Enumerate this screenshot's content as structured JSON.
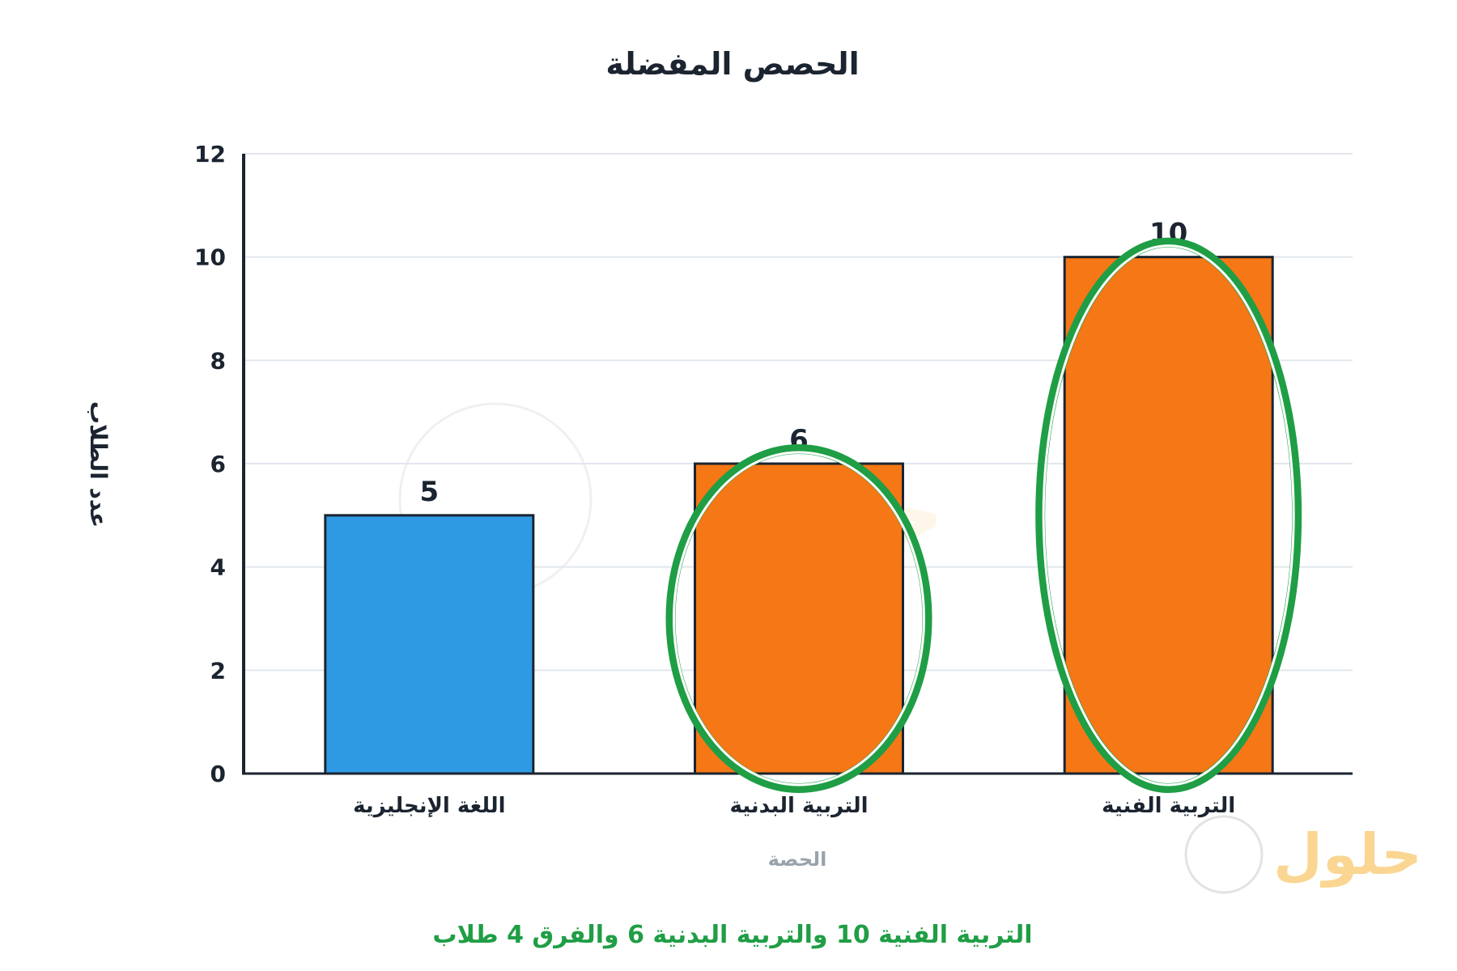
{
  "chart_data": {
    "type": "bar",
    "title": "الحصص المفضلة",
    "xlabel": "الحصة",
    "ylabel": "عدد الطلاب",
    "categories": [
      "اللغة الإنجليزية",
      "التربية البدنية",
      "التربية الفنية"
    ],
    "values": [
      5,
      6,
      10
    ],
    "bar_colors": [
      "#2f9ae4",
      "#f67716",
      "#f67716"
    ],
    "highlighted": [
      "التربية البدنية",
      "التربية الفنية"
    ],
    "highlight_color": "#1f9e45",
    "ylim": [
      0,
      12
    ],
    "yticks": [
      0,
      2,
      4,
      6,
      8,
      10,
      12
    ],
    "grid": true,
    "annotation": "التربية الفنية 10 والتربية البدنية 6 والفرق 4 طلاب"
  },
  "watermark": {
    "text": "حلول"
  }
}
